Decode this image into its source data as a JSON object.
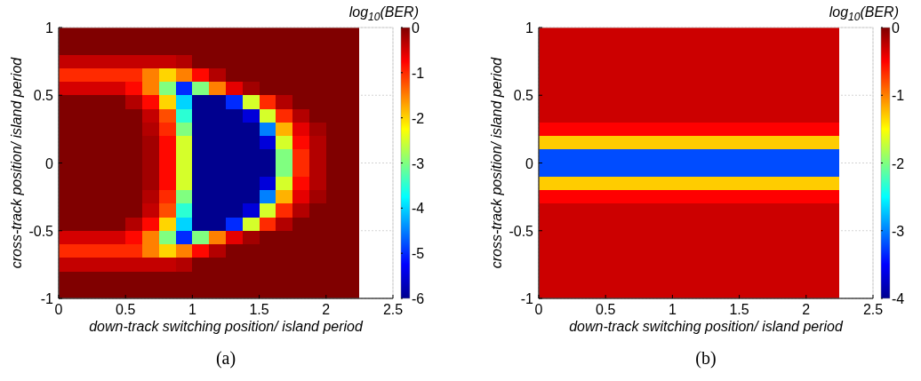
{
  "chart_data": [
    {
      "type": "heatmap",
      "xlabel": "down-track switching position/ island period",
      "ylabel": "cross-track position/ island period",
      "clabel": "log$_{10}$(BER)",
      "annotations": [
        "(a)"
      ],
      "grid": true,
      "xlim": [
        0,
        2.5
      ],
      "xticks": [
        0,
        0.5,
        1,
        1.5,
        2,
        2.5
      ],
      "ylim": [
        -1,
        1
      ],
      "yticks": [
        -1,
        -0.5,
        0,
        0.5,
        1
      ],
      "clim": [
        -6,
        0
      ],
      "cticks": [
        -6,
        -5,
        -4,
        -3,
        -2,
        -1,
        0
      ],
      "cells": [
        [
          0,
          0,
          0,
          0,
          0,
          0,
          0,
          0,
          0,
          0,
          0,
          0,
          0,
          0,
          0,
          0,
          0,
          0,
          null,
          null
        ],
        [
          0,
          0,
          0,
          0,
          0,
          0,
          0,
          0,
          0,
          0,
          0,
          0,
          0,
          0,
          0,
          0,
          0,
          0,
          null,
          null
        ],
        [
          -0.4,
          -0.4,
          -0.4,
          -0.4,
          -0.4,
          -0.4,
          -0.4,
          -0.3,
          0,
          0,
          0,
          0,
          0,
          0,
          0,
          0,
          0,
          0,
          null,
          null
        ],
        [
          -1,
          -1,
          -1,
          -1,
          -1,
          -1.5,
          -2,
          -1.5,
          -0.8,
          -0.3,
          0,
          0,
          0,
          0,
          0,
          0,
          0,
          0,
          null,
          null
        ],
        [
          -0.5,
          -0.5,
          -0.5,
          -0.5,
          -0.8,
          -1.5,
          -3,
          -5,
          -3,
          -1.5,
          -0.6,
          -0.2,
          0,
          0,
          0,
          0,
          0,
          0,
          null,
          null
        ],
        [
          0,
          0,
          0,
          0,
          -0.3,
          -0.8,
          -2,
          -4,
          -6,
          -6,
          -5,
          -2.5,
          -1,
          -0.3,
          0,
          0,
          0,
          0,
          null,
          null
        ],
        [
          0,
          0,
          0,
          0,
          0,
          -0.4,
          -1.2,
          -3.5,
          -6,
          -6,
          -6,
          -5.5,
          -2.5,
          -1,
          -0.3,
          0,
          0,
          0,
          null,
          null
        ],
        [
          0,
          0,
          0,
          0,
          0,
          -0.3,
          -1,
          -3,
          -6,
          -6,
          -6,
          -6,
          -4.5,
          -1.8,
          -0.6,
          -0.2,
          0,
          0,
          null,
          null
        ],
        [
          0,
          0,
          0,
          0,
          0,
          -0.2,
          -0.8,
          -2.5,
          -6,
          -6,
          -6,
          -6,
          -5.5,
          -2.5,
          -0.8,
          -0.3,
          0,
          0,
          null,
          null
        ],
        [
          0,
          0,
          0,
          0,
          0,
          -0.2,
          -0.8,
          -2.5,
          -6,
          -6,
          -6,
          -6,
          -6,
          -3,
          -1,
          -0.3,
          0,
          0,
          null,
          null
        ],
        [
          0,
          0,
          0,
          0,
          0,
          -0.2,
          -0.8,
          -2.5,
          -6,
          -6,
          -6,
          -6,
          -6,
          -3,
          -1,
          -0.3,
          0,
          0,
          null,
          null
        ],
        [
          0,
          0,
          0,
          0,
          0,
          -0.2,
          -0.8,
          -2.5,
          -6,
          -6,
          -6,
          -6,
          -5.5,
          -2.5,
          -0.8,
          -0.3,
          0,
          0,
          null,
          null
        ],
        [
          0,
          0,
          0,
          0,
          0,
          -0.3,
          -1,
          -3,
          -6,
          -6,
          -6,
          -6,
          -4.5,
          -1.8,
          -0.6,
          -0.2,
          0,
          0,
          null,
          null
        ],
        [
          0,
          0,
          0,
          0,
          0,
          -0.4,
          -1.2,
          -3.5,
          -6,
          -6,
          -6,
          -5.5,
          -2.5,
          -1,
          -0.3,
          0,
          0,
          0,
          null,
          null
        ],
        [
          0,
          0,
          0,
          0,
          -0.3,
          -0.8,
          -2,
          -4,
          -6,
          -6,
          -5,
          -2.5,
          -1,
          -0.3,
          0,
          0,
          0,
          0,
          null,
          null
        ],
        [
          -0.5,
          -0.5,
          -0.5,
          -0.5,
          -0.8,
          -1.5,
          -3,
          -5,
          -3,
          -1.5,
          -0.6,
          -0.2,
          0,
          0,
          0,
          0,
          0,
          0,
          null,
          null
        ],
        [
          -1,
          -1,
          -1,
          -1,
          -1,
          -1.5,
          -2,
          -1.5,
          -0.8,
          -0.3,
          0,
          0,
          0,
          0,
          0,
          0,
          0,
          0,
          null,
          null
        ],
        [
          -0.4,
          -0.4,
          -0.4,
          -0.4,
          -0.4,
          -0.4,
          -0.4,
          -0.3,
          0,
          0,
          0,
          0,
          0,
          0,
          0,
          0,
          0,
          0,
          null,
          null
        ],
        [
          0,
          0,
          0,
          0,
          0,
          0,
          0,
          0,
          0,
          0,
          0,
          0,
          0,
          0,
          0,
          0,
          0,
          0,
          null,
          null
        ],
        [
          0,
          0,
          0,
          0,
          0,
          0,
          0,
          0,
          0,
          0,
          0,
          0,
          0,
          0,
          0,
          0,
          0,
          0,
          null,
          null
        ]
      ]
    },
    {
      "type": "heatmap",
      "xlabel": "down-track switching position/ island period",
      "ylabel": "cross-track position/ island period",
      "clabel": "log$_{10}$(BER)",
      "annotations": [
        "(b)"
      ],
      "grid": true,
      "xlim": [
        0,
        2.5
      ],
      "xticks": [
        0,
        0.5,
        1,
        1.5,
        2,
        2.5
      ],
      "ylim": [
        -1,
        1
      ],
      "yticks": [
        -1,
        -0.5,
        0,
        0.5,
        1
      ],
      "clim": [
        -4,
        0
      ],
      "cticks": [
        -4,
        -3,
        -2,
        -1,
        0
      ],
      "cells": [
        [
          -0.3,
          -0.3,
          -0.3,
          -0.3,
          -0.3,
          -0.3,
          -0.3,
          -0.3,
          -0.3,
          -0.3,
          -0.3,
          -0.3,
          -0.3,
          -0.3,
          -0.3,
          -0.3,
          -0.3,
          -0.3,
          null,
          null
        ],
        [
          -0.3,
          -0.3,
          -0.3,
          -0.3,
          -0.3,
          -0.3,
          -0.3,
          -0.3,
          -0.3,
          -0.3,
          -0.3,
          -0.3,
          -0.3,
          -0.3,
          -0.3,
          -0.3,
          -0.3,
          -0.3,
          null,
          null
        ],
        [
          -0.3,
          -0.3,
          -0.3,
          -0.3,
          -0.3,
          -0.3,
          -0.3,
          -0.3,
          -0.3,
          -0.3,
          -0.3,
          -0.3,
          -0.3,
          -0.3,
          -0.3,
          -0.3,
          -0.3,
          -0.3,
          null,
          null
        ],
        [
          -0.3,
          -0.3,
          -0.3,
          -0.3,
          -0.3,
          -0.3,
          -0.3,
          -0.3,
          -0.3,
          -0.3,
          -0.3,
          -0.3,
          -0.3,
          -0.3,
          -0.3,
          -0.3,
          -0.3,
          -0.3,
          null,
          null
        ],
        [
          -0.3,
          -0.3,
          -0.3,
          -0.3,
          -0.3,
          -0.3,
          -0.3,
          -0.3,
          -0.3,
          -0.3,
          -0.3,
          -0.3,
          -0.3,
          -0.3,
          -0.3,
          -0.3,
          -0.3,
          -0.3,
          null,
          null
        ],
        [
          -0.3,
          -0.3,
          -0.3,
          -0.3,
          -0.3,
          -0.3,
          -0.3,
          -0.3,
          -0.3,
          -0.3,
          -0.3,
          -0.3,
          -0.3,
          -0.3,
          -0.3,
          -0.3,
          -0.3,
          -0.3,
          null,
          null
        ],
        [
          -0.3,
          -0.3,
          -0.3,
          -0.3,
          -0.3,
          -0.3,
          -0.3,
          -0.3,
          -0.3,
          -0.3,
          -0.3,
          -0.3,
          -0.3,
          -0.3,
          -0.3,
          -0.3,
          -0.3,
          -0.3,
          null,
          null
        ],
        [
          -0.5,
          -0.5,
          -0.5,
          -0.5,
          -0.5,
          -0.5,
          -0.5,
          -0.5,
          -0.5,
          -0.5,
          -0.5,
          -0.5,
          -0.5,
          -0.5,
          -0.5,
          -0.5,
          -0.5,
          -0.5,
          null,
          null
        ],
        [
          -1.3,
          -1.3,
          -1.3,
          -1.3,
          -1.3,
          -1.3,
          -1.3,
          -1.3,
          -1.3,
          -1.3,
          -1.3,
          -1.3,
          -1.3,
          -1.3,
          -1.3,
          -1.3,
          -1.3,
          -1.3,
          null,
          null
        ],
        [
          -3.2,
          -3.2,
          -3.2,
          -3.2,
          -3.2,
          -3.2,
          -3.2,
          -3.2,
          -3.2,
          -3.2,
          -3.2,
          -3.2,
          -3.2,
          -3.2,
          -3.2,
          -3.2,
          -3.2,
          -3.2,
          null,
          null
        ],
        [
          -3.2,
          -3.2,
          -3.2,
          -3.2,
          -3.2,
          -3.2,
          -3.2,
          -3.2,
          -3.2,
          -3.2,
          -3.2,
          -3.2,
          -3.2,
          -3.2,
          -3.2,
          -3.2,
          -3.2,
          -3.2,
          null,
          null
        ],
        [
          -1.3,
          -1.3,
          -1.3,
          -1.3,
          -1.3,
          -1.3,
          -1.3,
          -1.3,
          -1.3,
          -1.3,
          -1.3,
          -1.3,
          -1.3,
          -1.3,
          -1.3,
          -1.3,
          -1.3,
          -1.3,
          null,
          null
        ],
        [
          -0.5,
          -0.5,
          -0.5,
          -0.5,
          -0.5,
          -0.5,
          -0.5,
          -0.5,
          -0.5,
          -0.5,
          -0.5,
          -0.5,
          -0.5,
          -0.5,
          -0.5,
          -0.5,
          -0.5,
          -0.5,
          null,
          null
        ],
        [
          -0.3,
          -0.3,
          -0.3,
          -0.3,
          -0.3,
          -0.3,
          -0.3,
          -0.3,
          -0.3,
          -0.3,
          -0.3,
          -0.3,
          -0.3,
          -0.3,
          -0.3,
          -0.3,
          -0.3,
          -0.3,
          null,
          null
        ],
        [
          -0.3,
          -0.3,
          -0.3,
          -0.3,
          -0.3,
          -0.3,
          -0.3,
          -0.3,
          -0.3,
          -0.3,
          -0.3,
          -0.3,
          -0.3,
          -0.3,
          -0.3,
          -0.3,
          -0.3,
          -0.3,
          null,
          null
        ],
        [
          -0.3,
          -0.3,
          -0.3,
          -0.3,
          -0.3,
          -0.3,
          -0.3,
          -0.3,
          -0.3,
          -0.3,
          -0.3,
          -0.3,
          -0.3,
          -0.3,
          -0.3,
          -0.3,
          -0.3,
          -0.3,
          null,
          null
        ],
        [
          -0.3,
          -0.3,
          -0.3,
          -0.3,
          -0.3,
          -0.3,
          -0.3,
          -0.3,
          -0.3,
          -0.3,
          -0.3,
          -0.3,
          -0.3,
          -0.3,
          -0.3,
          -0.3,
          -0.3,
          -0.3,
          null,
          null
        ],
        [
          -0.3,
          -0.3,
          -0.3,
          -0.3,
          -0.3,
          -0.3,
          -0.3,
          -0.3,
          -0.3,
          -0.3,
          -0.3,
          -0.3,
          -0.3,
          -0.3,
          -0.3,
          -0.3,
          -0.3,
          -0.3,
          null,
          null
        ],
        [
          -0.3,
          -0.3,
          -0.3,
          -0.3,
          -0.3,
          -0.3,
          -0.3,
          -0.3,
          -0.3,
          -0.3,
          -0.3,
          -0.3,
          -0.3,
          -0.3,
          -0.3,
          -0.3,
          -0.3,
          -0.3,
          null,
          null
        ],
        [
          -0.3,
          -0.3,
          -0.3,
          -0.3,
          -0.3,
          -0.3,
          -0.3,
          -0.3,
          -0.3,
          -0.3,
          -0.3,
          -0.3,
          -0.3,
          -0.3,
          -0.3,
          -0.3,
          -0.3,
          -0.3,
          null,
          null
        ]
      ]
    }
  ]
}
